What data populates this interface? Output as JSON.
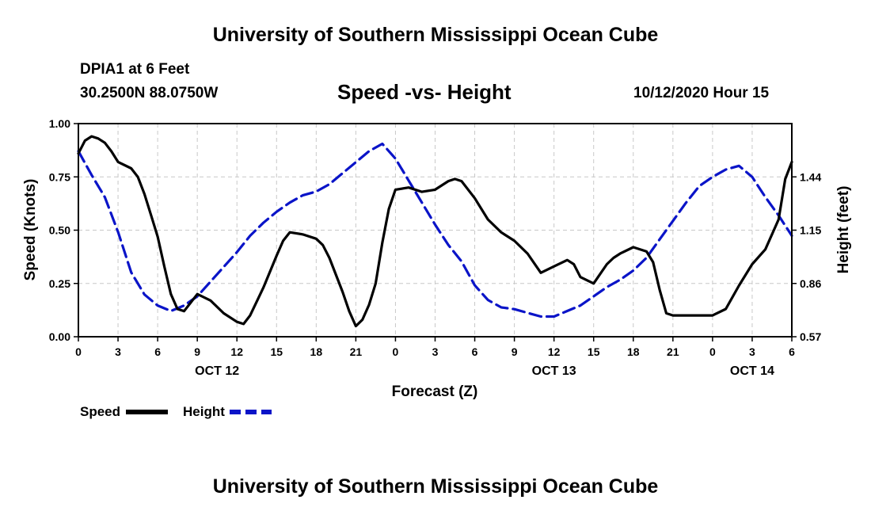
{
  "header": {
    "title": "University of Southern Mississippi Ocean Cube",
    "station": "DPIA1 at 6 Feet",
    "coords": "30.2500N 88.0750W",
    "datetime": "10/12/2020 Hour 15"
  },
  "footer": {
    "title": "University of Southern Mississippi Ocean Cube"
  },
  "chart_data": {
    "type": "line",
    "title": "Speed -vs- Height",
    "xlabel": "Forecast (Z)",
    "ylabel": "Speed (Knots)",
    "y2label": "Height (feet)",
    "x_unit": "forecast hours from OCT 12 00Z",
    "xlim": [
      0,
      54
    ],
    "ylim": [
      0,
      1
    ],
    "y2lim": [
      0.57,
      1.73
    ],
    "x_ticks": [
      0,
      3,
      6,
      9,
      12,
      15,
      18,
      21,
      24,
      27,
      30,
      33,
      36,
      39,
      42,
      45,
      48,
      51,
      54
    ],
    "x_tick_labels": [
      "0",
      "3",
      "6",
      "9",
      "12",
      "15",
      "18",
      "21",
      "0",
      "3",
      "6",
      "9",
      "12",
      "15",
      "18",
      "21",
      "0",
      "3",
      "6"
    ],
    "date_labels": [
      {
        "text": "OCT 12",
        "x": 10.5
      },
      {
        "text": "OCT 13",
        "x": 36
      },
      {
        "text": "OCT 14",
        "x": 51
      }
    ],
    "y_ticks": [
      0,
      0.25,
      0.5,
      0.75,
      1
    ],
    "y_tick_labels": [
      "0.00",
      "0.25",
      "0.50",
      "0.75",
      "1.00"
    ],
    "y2_ticks": [
      0.57,
      0.86,
      1.15,
      1.44
    ],
    "y2_tick_labels": [
      "0.57",
      "0.86",
      "1.15",
      "1.44"
    ],
    "grid": true,
    "legend": [
      {
        "name": "Speed",
        "color": "#000000",
        "dash": "solid"
      },
      {
        "name": "Height",
        "color": "#0a14c8",
        "dash": "dashed"
      }
    ],
    "series": [
      {
        "name": "Speed",
        "axis": "left",
        "color": "#000000",
        "x": [
          0,
          0.5,
          1,
          1.5,
          2,
          2.5,
          3,
          4,
          4.5,
          5,
          5.5,
          6,
          6.5,
          7,
          7.5,
          8,
          8.5,
          9,
          10,
          11,
          12,
          12.5,
          13,
          14,
          15,
          15.5,
          16,
          17,
          18,
          18.5,
          19,
          20,
          20.5,
          21,
          21.5,
          22,
          22.5,
          23,
          23.5,
          24,
          25,
          26,
          27,
          28,
          28.5,
          29,
          30,
          31,
          32,
          33,
          34,
          35,
          36,
          37,
          37.5,
          38,
          39,
          40,
          40.5,
          41,
          42,
          43,
          43.5,
          44,
          44.5,
          45,
          45.5,
          46,
          47,
          48,
          49,
          50,
          51,
          52,
          53,
          53.5,
          54
        ],
        "values": [
          0.86,
          0.92,
          0.94,
          0.93,
          0.91,
          0.87,
          0.82,
          0.79,
          0.75,
          0.67,
          0.57,
          0.47,
          0.33,
          0.2,
          0.13,
          0.12,
          0.16,
          0.2,
          0.17,
          0.11,
          0.07,
          0.06,
          0.1,
          0.23,
          0.38,
          0.45,
          0.49,
          0.48,
          0.46,
          0.43,
          0.37,
          0.21,
          0.12,
          0.05,
          0.08,
          0.15,
          0.25,
          0.44,
          0.6,
          0.69,
          0.7,
          0.68,
          0.69,
          0.73,
          0.74,
          0.73,
          0.65,
          0.55,
          0.49,
          0.45,
          0.39,
          0.3,
          0.33,
          0.36,
          0.34,
          0.28,
          0.25,
          0.34,
          0.37,
          0.39,
          0.42,
          0.4,
          0.35,
          0.22,
          0.11,
          0.1,
          0.1,
          0.1,
          0.1,
          0.1,
          0.13,
          0.24,
          0.34,
          0.41,
          0.55,
          0.74,
          0.82
        ]
      },
      {
        "name": "Height",
        "axis": "right",
        "color": "#0a14c8",
        "x": [
          0,
          1,
          2,
          3,
          4,
          5,
          6,
          7,
          8,
          9,
          10,
          11,
          12,
          13,
          14,
          15,
          16,
          17,
          18,
          19,
          20,
          21,
          22,
          23,
          24,
          25,
          26,
          27,
          28,
          29,
          30,
          31,
          32,
          33,
          34,
          35,
          36,
          37,
          38,
          39,
          40,
          41,
          42,
          43,
          44,
          45,
          46,
          47,
          48,
          49,
          50,
          51,
          52,
          53,
          54
        ],
        "values": [
          1.58,
          1.45,
          1.33,
          1.14,
          0.92,
          0.8,
          0.74,
          0.71,
          0.74,
          0.79,
          0.87,
          0.95,
          1.03,
          1.12,
          1.19,
          1.25,
          1.3,
          1.34,
          1.36,
          1.4,
          1.46,
          1.52,
          1.58,
          1.62,
          1.54,
          1.42,
          1.3,
          1.18,
          1.07,
          0.98,
          0.85,
          0.77,
          0.73,
          0.72,
          0.7,
          0.68,
          0.68,
          0.71,
          0.74,
          0.79,
          0.84,
          0.88,
          0.93,
          1.0,
          1.1,
          1.2,
          1.3,
          1.39,
          1.44,
          1.48,
          1.5,
          1.44,
          1.33,
          1.23,
          1.12
        ]
      }
    ]
  }
}
